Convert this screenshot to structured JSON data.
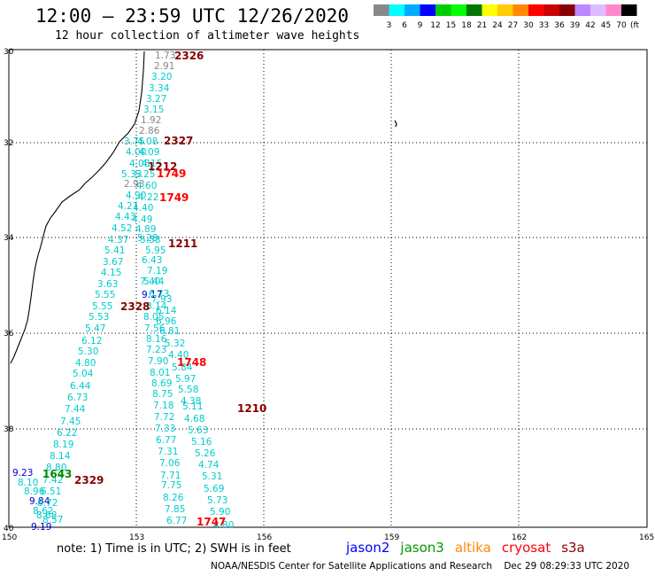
{
  "title": "12:00 – 23:59 UTC 12/26/2020",
  "subtitle": "12 hour collection of altimeter wave heights",
  "scale": {
    "colors": [
      "#888888",
      "#00ffff",
      "#00aaff",
      "#0000ff",
      "#00cc00",
      "#00ff00",
      "#007700",
      "#ffff00",
      "#ffcc00",
      "#ff8800",
      "#ff0000",
      "#cc0000",
      "#880000",
      "#bb88ff",
      "#ddbbff",
      "#ff88cc",
      "#000000"
    ],
    "labels": [
      "3",
      "6",
      "9",
      "12",
      "15",
      "18",
      "21",
      "24",
      "27",
      "30",
      "33",
      "36",
      "39",
      "42",
      "45",
      "70"
    ],
    "unit": "(ft)"
  },
  "axes": {
    "lat_labels": [
      "30",
      "32",
      "34",
      "36",
      "38",
      "40"
    ],
    "lon_labels": [
      "150",
      "153",
      "156",
      "159",
      "162",
      "165"
    ]
  },
  "points": [
    {
      "v": "1.73",
      "c": "#888888"
    },
    {
      "v": "2.91",
      "c": "#888888"
    },
    {
      "v": "3.20",
      "c": "#00cccc"
    },
    {
      "v": "3.34",
      "c": "#00cccc"
    },
    {
      "v": "3.27",
      "c": "#00cccc"
    },
    {
      "v": "3.15",
      "c": "#00cccc"
    },
    {
      "v": "1.92",
      "c": "#888888"
    },
    {
      "v": "2.86",
      "c": "#888888"
    },
    {
      "v": "3.75",
      "c": "#00cccc"
    },
    {
      "v": "4.08",
      "c": "#00cccc"
    },
    {
      "v": "4.00",
      "c": "#00cccc"
    },
    {
      "v": "4.09",
      "c": "#00cccc"
    },
    {
      "v": "4.08",
      "c": "#00cccc"
    },
    {
      "v": "4.15",
      "c": "#00cccc"
    },
    {
      "v": "5.33",
      "c": "#00cccc"
    },
    {
      "v": "5.25",
      "c": "#00cccc"
    },
    {
      "v": "2.93",
      "c": "#888888"
    },
    {
      "v": "4.60",
      "c": "#00cccc"
    },
    {
      "v": "4.90",
      "c": "#00cccc"
    },
    {
      "v": "4.22",
      "c": "#00cccc"
    },
    {
      "v": "4.21",
      "c": "#00cccc"
    },
    {
      "v": "4.40",
      "c": "#00cccc"
    },
    {
      "v": "4.43",
      "c": "#00cccc"
    },
    {
      "v": "4.49",
      "c": "#00cccc"
    },
    {
      "v": "4.89",
      "c": "#00cccc"
    },
    {
      "v": "4.52",
      "c": "#00cccc"
    },
    {
      "v": "5.28",
      "c": "#00cccc"
    },
    {
      "v": "5.38",
      "c": "#00cccc"
    },
    {
      "v": "4.37",
      "c": "#00cccc"
    },
    {
      "v": "5.95",
      "c": "#00cccc"
    },
    {
      "v": "5.41",
      "c": "#00cccc"
    },
    {
      "v": "6.43",
      "c": "#00cccc"
    },
    {
      "v": "3.67",
      "c": "#00cccc"
    },
    {
      "v": "7.19",
      "c": "#00cccc"
    },
    {
      "v": "4.15",
      "c": "#00cccc"
    },
    {
      "v": "5.44",
      "c": "#00cccc"
    },
    {
      "v": "3.63",
      "c": "#00cccc"
    },
    {
      "v": "7.40",
      "c": "#00cccc"
    },
    {
      "v": "5.55",
      "c": "#00cccc"
    },
    {
      "v": "9.17",
      "c": "#0000cc"
    },
    {
      "v": "5.55",
      "c": "#00cccc"
    },
    {
      "v": "8.14",
      "c": "#00cccc"
    },
    {
      "v": "5.53",
      "c": "#00cccc"
    },
    {
      "v": "8.05",
      "c": "#00cccc"
    },
    {
      "v": "5.47",
      "c": "#00cccc"
    },
    {
      "v": "7.56",
      "c": "#00cccc"
    },
    {
      "v": "6.12",
      "c": "#00cccc"
    },
    {
      "v": "8.16",
      "c": "#00cccc"
    },
    {
      "v": "5.30",
      "c": "#00cccc"
    },
    {
      "v": "7.23",
      "c": "#00cccc"
    },
    {
      "v": "4.80",
      "c": "#00cccc"
    },
    {
      "v": "7.90",
      "c": "#00cccc"
    },
    {
      "v": "5.04",
      "c": "#00cccc"
    },
    {
      "v": "8.01",
      "c": "#00cccc"
    },
    {
      "v": "6.44",
      "c": "#00cccc"
    },
    {
      "v": "8.69",
      "c": "#00cccc"
    },
    {
      "v": "6.73",
      "c": "#00cccc"
    },
    {
      "v": "8.75",
      "c": "#00cccc"
    },
    {
      "v": "7.44",
      "c": "#00cccc"
    },
    {
      "v": "7.18",
      "c": "#00cccc"
    },
    {
      "v": "7.45",
      "c": "#00cccc"
    },
    {
      "v": "7.72",
      "c": "#00cccc"
    },
    {
      "v": "6.22",
      "c": "#00cccc"
    },
    {
      "v": "7.33",
      "c": "#00cccc"
    },
    {
      "v": "8.19",
      "c": "#00cccc"
    },
    {
      "v": "6.77",
      "c": "#00cccc"
    },
    {
      "v": "8.14",
      "c": "#00cccc"
    },
    {
      "v": "7.31",
      "c": "#00cccc"
    },
    {
      "v": "8.80",
      "c": "#00cccc"
    },
    {
      "v": "7.06",
      "c": "#00cccc"
    },
    {
      "v": "7.42",
      "c": "#00cccc"
    },
    {
      "v": "7.71",
      "c": "#00cccc"
    },
    {
      "v": "7.75",
      "c": "#00cccc"
    },
    {
      "v": "8.26",
      "c": "#00cccc"
    },
    {
      "v": "7.85",
      "c": "#00cccc"
    },
    {
      "v": "6.77",
      "c": "#00cccc"
    },
    {
      "v": "9.23",
      "c": "#0000cc"
    },
    {
      "v": "8.10",
      "c": "#00cccc"
    },
    {
      "v": "8.96",
      "c": "#00cccc"
    },
    {
      "v": "6.51",
      "c": "#00cccc"
    },
    {
      "v": "9.84",
      "c": "#0000cc"
    },
    {
      "v": "8.72",
      "c": "#00cccc"
    },
    {
      "v": "8.62",
      "c": "#00cccc"
    },
    {
      "v": "8.68",
      "c": "#00cccc"
    },
    {
      "v": "8.57",
      "c": "#00cccc"
    },
    {
      "v": "9.19",
      "c": "#0000cc"
    },
    {
      "v": "6.73",
      "c": "#00cccc"
    },
    {
      "v": "7.93",
      "c": "#00cccc"
    },
    {
      "v": "6.14",
      "c": "#00cccc"
    },
    {
      "v": "6.96",
      "c": "#00cccc"
    },
    {
      "v": "6.81",
      "c": "#00cccc"
    },
    {
      "v": "5.32",
      "c": "#00cccc"
    },
    {
      "v": "4.40",
      "c": "#00cccc"
    },
    {
      "v": "5.84",
      "c": "#00cccc"
    },
    {
      "v": "5.97",
      "c": "#00cccc"
    },
    {
      "v": "5.58",
      "c": "#00cccc"
    },
    {
      "v": "4.38",
      "c": "#00cccc"
    },
    {
      "v": "5.11",
      "c": "#00cccc"
    },
    {
      "v": "4.68",
      "c": "#00cccc"
    },
    {
      "v": "5.63",
      "c": "#00cccc"
    },
    {
      "v": "5.16",
      "c": "#00cccc"
    },
    {
      "v": "5.26",
      "c": "#00cccc"
    },
    {
      "v": "4.74",
      "c": "#00cccc"
    },
    {
      "v": "5.31",
      "c": "#00cccc"
    },
    {
      "v": "5.69",
      "c": "#00cccc"
    },
    {
      "v": "5.73",
      "c": "#00cccc"
    },
    {
      "v": "5.90",
      "c": "#00cccc"
    },
    {
      "v": "4.80",
      "c": "#00cccc"
    }
  ],
  "time_labels": [
    {
      "v": "2326",
      "c": "#880000"
    },
    {
      "v": "2327",
      "c": "#880000"
    },
    {
      "v": "1212",
      "c": "#880000"
    },
    {
      "v": "1749",
      "c": "#ff0000"
    },
    {
      "v": "1749",
      "c": "#ff0000"
    },
    {
      "v": "1211",
      "c": "#880000"
    },
    {
      "v": "2328",
      "c": "#880000"
    },
    {
      "v": "1748",
      "c": "#ff0000"
    },
    {
      "v": "1210",
      "c": "#880000"
    },
    {
      "v": "1643",
      "c": "#008800"
    },
    {
      "v": "2329",
      "c": "#880000"
    },
    {
      "v": "1747",
      "c": "#ff0000"
    }
  ],
  "footnote": "note: 1) Time is in UTC; 2) SWH is in feet",
  "legend": [
    {
      "name": "jason2",
      "color": "#0000ff"
    },
    {
      "name": "jason3",
      "color": "#009900"
    },
    {
      "name": "altika",
      "color": "#ff8800"
    },
    {
      "name": "cryosat",
      "color": "#ff0000"
    },
    {
      "name": "s3a",
      "color": "#880000"
    }
  ],
  "credits": "NOAA/NESDIS Center for Satellite Applications and Research    Dec 29 08:29:33 UTC 2020"
}
